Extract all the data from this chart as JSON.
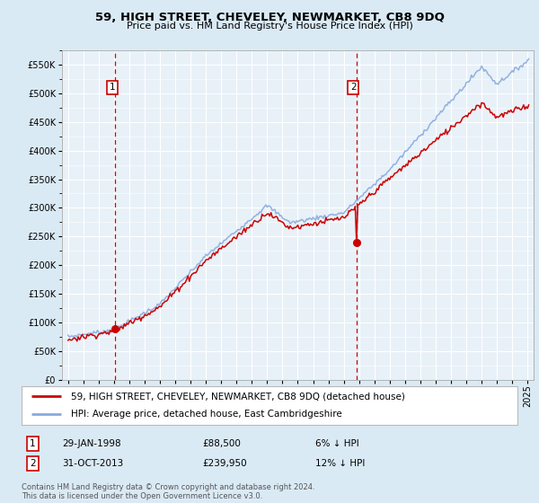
{
  "title": "59, HIGH STREET, CHEVELEY, NEWMARKET, CB8 9DQ",
  "subtitle": "Price paid vs. HM Land Registry's House Price Index (HPI)",
  "property_label": "59, HIGH STREET, CHEVELEY, NEWMARKET, CB8 9DQ (detached house)",
  "hpi_label": "HPI: Average price, detached house, East Cambridgeshire",
  "footer": "Contains HM Land Registry data © Crown copyright and database right 2024.\nThis data is licensed under the Open Government Licence v3.0.",
  "sale1_date": "29-JAN-1998",
  "sale1_price": 88500,
  "sale1_pct": "6% ↓ HPI",
  "sale2_date": "31-OCT-2013",
  "sale2_price": 239950,
  "sale2_pct": "12% ↓ HPI",
  "sale1_year": 1998.08,
  "sale2_year": 2013.83,
  "ylim_min": 0,
  "ylim_max": 575000,
  "xlim_min": 1994.6,
  "xlim_max": 2025.4,
  "background_color": "#daeaf5",
  "plot_bg_color": "#e8f1f8",
  "line_color_property": "#cc0000",
  "line_color_hpi": "#88aadd",
  "marker_color": "#cc0000",
  "dashed_line_color": "#cc0000",
  "grid_color": "#ffffff",
  "box_color": "#cc0000",
  "title_fontsize": 9.5,
  "subtitle_fontsize": 8,
  "tick_fontsize": 7,
  "legend_fontsize": 7.5,
  "info_fontsize": 7.5,
  "footer_fontsize": 6
}
